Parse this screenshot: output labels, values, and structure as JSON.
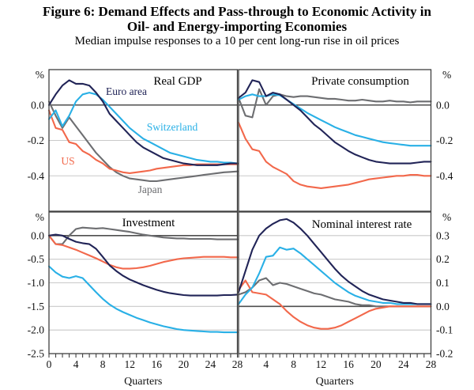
{
  "figure": {
    "title_line1": "Figure 6: Demand Effects and Pass-through to Economic Activity in",
    "title_line2": "Oil- and Energy-importing Economies",
    "subtitle": "Median impulse responses to a 10 per cent long-run rise in oil prices"
  },
  "colors": {
    "euro_area": "#212457",
    "switzerland": "#29b0e6",
    "us": "#f2684b",
    "japan": "#6d6e71",
    "grid_light": "#c9c9c9",
    "axis_dark": "#404040",
    "zero_line": "#4f4f4f",
    "text": "#111111"
  },
  "x_axis": {
    "label": "Quarters",
    "range": [
      0,
      28
    ],
    "minor_step": 1
  },
  "chart_data": [
    {
      "type": "line",
      "title": "Real GDP",
      "position": "top-left",
      "y_unit": "%",
      "y_range": [
        -0.6,
        0.2
      ],
      "axis_side": "left",
      "y_ticks": [
        {
          "label": "0.0",
          "value": 0.0,
          "line": "zero"
        },
        {
          "label": "-0.2",
          "value": -0.2,
          "line": "grid"
        },
        {
          "label": "-0.4",
          "value": -0.4,
          "line": "grid"
        }
      ],
      "x_ticks": [],
      "x_axis_label": "",
      "series": [
        {
          "name": "Japan",
          "color": "japan",
          "values": [
            0.02,
            -0.06,
            -0.13,
            -0.07,
            -0.12,
            -0.17,
            -0.22,
            -0.27,
            -0.31,
            -0.35,
            -0.38,
            -0.4,
            -0.415,
            -0.42,
            -0.425,
            -0.43,
            -0.43,
            -0.425,
            -0.42,
            -0.415,
            -0.41,
            -0.405,
            -0.4,
            -0.395,
            -0.39,
            -0.385,
            -0.38,
            -0.378,
            -0.375
          ]
        },
        {
          "name": "US",
          "color": "us",
          "values": [
            -0.03,
            -0.13,
            -0.14,
            -0.21,
            -0.22,
            -0.26,
            -0.28,
            -0.31,
            -0.33,
            -0.36,
            -0.37,
            -0.38,
            -0.385,
            -0.38,
            -0.375,
            -0.37,
            -0.36,
            -0.355,
            -0.35,
            -0.345,
            -0.34,
            -0.34,
            -0.335,
            -0.335,
            -0.335,
            -0.335,
            -0.335,
            -0.335,
            -0.335
          ]
        },
        {
          "name": "Switzerland",
          "color": "switzerland",
          "values": [
            -0.08,
            -0.03,
            -0.12,
            -0.06,
            0.02,
            0.06,
            0.07,
            0.06,
            0.03,
            -0.01,
            -0.05,
            -0.09,
            -0.13,
            -0.16,
            -0.19,
            -0.21,
            -0.23,
            -0.25,
            -0.27,
            -0.28,
            -0.29,
            -0.3,
            -0.31,
            -0.315,
            -0.32,
            -0.32,
            -0.325,
            -0.325,
            -0.33
          ]
        },
        {
          "name": "Euro area",
          "color": "euro_area",
          "values": [
            0.0,
            0.06,
            0.11,
            0.14,
            0.12,
            0.12,
            0.11,
            0.07,
            0.02,
            -0.05,
            -0.09,
            -0.13,
            -0.17,
            -0.21,
            -0.24,
            -0.26,
            -0.28,
            -0.3,
            -0.31,
            -0.32,
            -0.33,
            -0.335,
            -0.34,
            -0.34,
            -0.34,
            -0.34,
            -0.335,
            -0.33,
            -0.33
          ]
        }
      ],
      "series_labels": [
        {
          "text": "Euro area",
          "color": "euro_area"
        },
        {
          "text": "Switzerland",
          "color": "switzerland"
        },
        {
          "text": "US",
          "color": "us"
        },
        {
          "text": "Japan",
          "color": "japan"
        }
      ]
    },
    {
      "type": "line",
      "title": "Private consumption",
      "position": "top-right",
      "y_unit": "%",
      "y_range": [
        -0.6,
        0.2
      ],
      "axis_side": "right",
      "y_ticks": [
        {
          "label": "0.0",
          "value": 0.0,
          "line": "zero"
        },
        {
          "label": "-0.2",
          "value": -0.2,
          "line": "grid"
        },
        {
          "label": "-0.4",
          "value": -0.4,
          "line": "grid"
        }
      ],
      "x_ticks": [],
      "x_axis_label": "",
      "series": [
        {
          "name": "Japan",
          "color": "japan",
          "values": [
            0.04,
            -0.06,
            -0.07,
            0.09,
            0.0,
            0.05,
            0.06,
            0.05,
            0.045,
            0.05,
            0.05,
            0.045,
            0.04,
            0.035,
            0.035,
            0.03,
            0.025,
            0.025,
            0.03,
            0.025,
            0.02,
            0.02,
            0.025,
            0.02,
            0.02,
            0.015,
            0.02,
            0.02,
            0.02
          ]
        },
        {
          "name": "US",
          "color": "us",
          "values": [
            -0.1,
            -0.19,
            -0.25,
            -0.26,
            -0.32,
            -0.35,
            -0.37,
            -0.39,
            -0.43,
            -0.45,
            -0.46,
            -0.465,
            -0.47,
            -0.465,
            -0.46,
            -0.455,
            -0.45,
            -0.44,
            -0.43,
            -0.42,
            -0.415,
            -0.41,
            -0.405,
            -0.4,
            -0.4,
            -0.395,
            -0.395,
            -0.4,
            -0.4
          ]
        },
        {
          "name": "Switzerland",
          "color": "switzerland",
          "values": [
            0.03,
            0.05,
            0.06,
            0.05,
            0.05,
            0.06,
            0.055,
            0.03,
            0.005,
            -0.02,
            -0.045,
            -0.065,
            -0.085,
            -0.105,
            -0.125,
            -0.14,
            -0.155,
            -0.17,
            -0.18,
            -0.19,
            -0.2,
            -0.21,
            -0.215,
            -0.22,
            -0.225,
            -0.23,
            -0.23,
            -0.23,
            -0.23
          ]
        },
        {
          "name": "Euro area",
          "color": "euro_area",
          "values": [
            0.04,
            0.07,
            0.14,
            0.13,
            0.05,
            0.07,
            0.06,
            0.03,
            0.0,
            -0.03,
            -0.07,
            -0.11,
            -0.14,
            -0.175,
            -0.21,
            -0.235,
            -0.26,
            -0.28,
            -0.295,
            -0.31,
            -0.32,
            -0.325,
            -0.33,
            -0.33,
            -0.33,
            -0.33,
            -0.325,
            -0.32,
            -0.32
          ]
        }
      ],
      "series_labels": []
    },
    {
      "type": "line",
      "title": "Investment",
      "position": "bottom-left",
      "y_unit": "%",
      "y_range": [
        -2.5,
        0.5
      ],
      "axis_side": "left",
      "y_ticks": [
        {
          "label": "0.0",
          "value": 0.0,
          "line": "zero"
        },
        {
          "label": "-0.5",
          "value": -0.5,
          "line": "grid"
        },
        {
          "label": "-1.0",
          "value": -1.0,
          "line": "grid"
        },
        {
          "label": "-1.5",
          "value": -1.5,
          "line": "grid"
        },
        {
          "label": "-2.0",
          "value": -2.0,
          "line": "grid"
        },
        {
          "label": "-2.5",
          "value": -2.5,
          "line": "none"
        }
      ],
      "x_ticks": [
        {
          "label": "0",
          "value": 0
        },
        {
          "label": "4",
          "value": 4
        },
        {
          "label": "8",
          "value": 8
        },
        {
          "label": "12",
          "value": 12
        },
        {
          "label": "16",
          "value": 16
        },
        {
          "label": "20",
          "value": 20
        },
        {
          "label": "24",
          "value": 24
        },
        {
          "label": "28",
          "value": 28
        }
      ],
      "x_axis_label": "Quarters",
      "series": [
        {
          "name": "Japan",
          "color": "japan",
          "values": [
            0.0,
            -0.18,
            -0.18,
            0.0,
            0.14,
            0.17,
            0.16,
            0.15,
            0.16,
            0.14,
            0.12,
            0.1,
            0.08,
            0.05,
            0.02,
            0.0,
            -0.02,
            -0.04,
            -0.05,
            -0.06,
            -0.06,
            -0.07,
            -0.07,
            -0.07,
            -0.07,
            -0.08,
            -0.08,
            -0.08,
            -0.08
          ]
        },
        {
          "name": "US",
          "color": "us",
          "values": [
            0.0,
            -0.18,
            -0.2,
            -0.25,
            -0.3,
            -0.36,
            -0.42,
            -0.48,
            -0.55,
            -0.62,
            -0.67,
            -0.7,
            -0.7,
            -0.69,
            -0.67,
            -0.64,
            -0.6,
            -0.56,
            -0.53,
            -0.5,
            -0.48,
            -0.47,
            -0.46,
            -0.45,
            -0.45,
            -0.45,
            -0.45,
            -0.46,
            -0.46
          ]
        },
        {
          "name": "Switzerland",
          "color": "switzerland",
          "values": [
            -0.65,
            -0.78,
            -0.87,
            -0.9,
            -0.86,
            -0.9,
            -1.05,
            -1.2,
            -1.34,
            -1.46,
            -1.55,
            -1.62,
            -1.68,
            -1.74,
            -1.79,
            -1.84,
            -1.88,
            -1.92,
            -1.95,
            -1.98,
            -2.0,
            -2.01,
            -2.02,
            -2.03,
            -2.04,
            -2.04,
            -2.05,
            -2.05,
            -2.05
          ]
        },
        {
          "name": "Euro area",
          "color": "euro_area",
          "values": [
            0.0,
            0.02,
            0.0,
            -0.07,
            -0.13,
            -0.16,
            -0.18,
            -0.28,
            -0.45,
            -0.63,
            -0.75,
            -0.85,
            -0.93,
            -0.99,
            -1.05,
            -1.1,
            -1.15,
            -1.19,
            -1.22,
            -1.24,
            -1.26,
            -1.27,
            -1.27,
            -1.27,
            -1.27,
            -1.27,
            -1.26,
            -1.26,
            -1.25
          ]
        }
      ],
      "series_labels": []
    },
    {
      "type": "line",
      "title": "Nominal interest rate",
      "position": "bottom-right",
      "y_unit": "%",
      "y_range": [
        -0.2,
        0.4
      ],
      "axis_side": "right",
      "y_ticks": [
        {
          "label": "0.3",
          "value": 0.3,
          "line": "grid"
        },
        {
          "label": "0.2",
          "value": 0.2,
          "line": "grid"
        },
        {
          "label": "0.1",
          "value": 0.1,
          "line": "grid"
        },
        {
          "label": "0.0",
          "value": 0.0,
          "line": "zero"
        },
        {
          "label": "-0.1",
          "value": -0.1,
          "line": "grid"
        },
        {
          "label": "-0.2",
          "value": -0.2,
          "line": "none"
        }
      ],
      "x_ticks": [
        {
          "label": "4",
          "value": 4
        },
        {
          "label": "8",
          "value": 8
        },
        {
          "label": "12",
          "value": 12
        },
        {
          "label": "16",
          "value": 16
        },
        {
          "label": "20",
          "value": 20
        },
        {
          "label": "24",
          "value": 24
        },
        {
          "label": "28",
          "value": 28
        }
      ],
      "x_axis_label": "Quarters",
      "series": [
        {
          "name": "Japan",
          "color": "japan",
          "values": [
            0.05,
            0.06,
            0.08,
            0.11,
            0.12,
            0.09,
            0.1,
            0.095,
            0.085,
            0.075,
            0.065,
            0.055,
            0.05,
            0.04,
            0.03,
            0.025,
            0.02,
            0.01,
            0.005,
            0.005,
            0.0,
            0.0,
            0.0,
            0.0,
            0.0,
            0.0,
            0.0,
            0.0,
            0.0
          ]
        },
        {
          "name": "US",
          "color": "us",
          "values": [
            0.07,
            0.11,
            0.06,
            0.055,
            0.05,
            0.03,
            0.01,
            -0.02,
            -0.045,
            -0.065,
            -0.08,
            -0.09,
            -0.095,
            -0.095,
            -0.09,
            -0.08,
            -0.065,
            -0.05,
            -0.035,
            -0.02,
            -0.01,
            -0.005,
            0.0,
            0.0,
            0.0,
            0.0,
            0.0,
            0.0,
            0.0
          ]
        },
        {
          "name": "Switzerland",
          "color": "switzerland",
          "values": [
            0.01,
            0.05,
            0.08,
            0.14,
            0.21,
            0.215,
            0.25,
            0.24,
            0.245,
            0.225,
            0.2,
            0.175,
            0.15,
            0.125,
            0.1,
            0.08,
            0.06,
            0.045,
            0.035,
            0.025,
            0.02,
            0.015,
            0.015,
            0.01,
            0.01,
            0.01,
            0.01,
            0.01,
            0.01
          ]
        },
        {
          "name": "Euro area",
          "color": "euro_area",
          "values": [
            0.06,
            0.15,
            0.24,
            0.3,
            0.33,
            0.35,
            0.365,
            0.37,
            0.355,
            0.33,
            0.3,
            0.265,
            0.23,
            0.195,
            0.16,
            0.13,
            0.105,
            0.085,
            0.065,
            0.05,
            0.04,
            0.03,
            0.025,
            0.02,
            0.015,
            0.015,
            0.01,
            0.01,
            0.01
          ]
        }
      ],
      "series_labels": []
    }
  ]
}
